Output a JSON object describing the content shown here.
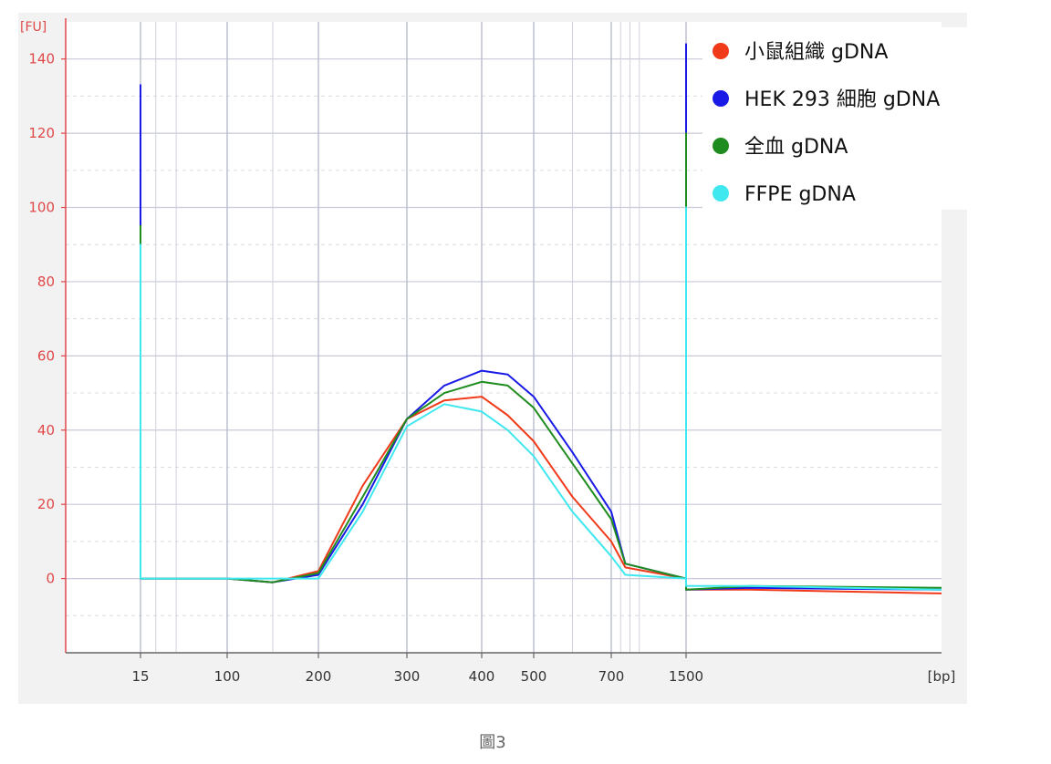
{
  "caption": "圖3",
  "chart_data": {
    "type": "line",
    "yunit": "[FU]",
    "xunit": "[bp]",
    "ylim": [
      -20,
      150
    ],
    "yticks": [
      0,
      20,
      40,
      60,
      80,
      100,
      120,
      140
    ],
    "xticks": [
      {
        "label": "15",
        "value": 15
      },
      {
        "label": "100",
        "value": 100
      },
      {
        "label": "200",
        "value": 200
      },
      {
        "label": "300",
        "value": 300
      },
      {
        "label": "400",
        "value": 400
      },
      {
        "label": "500",
        "value": 500
      },
      {
        "label": "700",
        "value": 700
      },
      {
        "label": "1500",
        "value": 1500
      }
    ],
    "grid": true,
    "legend_position": "top-right",
    "axis_color": "#e04848",
    "series": [
      {
        "name": "小鼠組織 gDNA",
        "color": "#f03a1a",
        "points": [
          [
            15,
            0
          ],
          [
            15,
            85
          ],
          [
            15,
            0
          ],
          [
            100,
            0
          ],
          [
            150,
            -1
          ],
          [
            200,
            2
          ],
          [
            250,
            25
          ],
          [
            300,
            43
          ],
          [
            350,
            48
          ],
          [
            400,
            49
          ],
          [
            450,
            44
          ],
          [
            500,
            37
          ],
          [
            600,
            22
          ],
          [
            700,
            10
          ],
          [
            850,
            3
          ],
          [
            1500,
            0
          ],
          [
            1500,
            60
          ],
          [
            1500,
            -3
          ],
          [
            2000,
            -3
          ],
          [
            3500,
            -4
          ]
        ]
      },
      {
        "name": "HEK 293 細胞 gDNA",
        "color": "#1a1ae6",
        "points": [
          [
            15,
            0
          ],
          [
            15,
            133
          ],
          [
            15,
            0
          ],
          [
            100,
            0
          ],
          [
            150,
            -1
          ],
          [
            200,
            1
          ],
          [
            250,
            20
          ],
          [
            300,
            43
          ],
          [
            350,
            52
          ],
          [
            400,
            56
          ],
          [
            450,
            55
          ],
          [
            500,
            49
          ],
          [
            600,
            34
          ],
          [
            700,
            18
          ],
          [
            850,
            4
          ],
          [
            1500,
            0
          ],
          [
            1500,
            144
          ],
          [
            1500,
            -3
          ],
          [
            2000,
            -2.5
          ],
          [
            3500,
            -3
          ]
        ]
      },
      {
        "name": "全血 gDNA",
        "color": "#1e8c1e",
        "points": [
          [
            15,
            0
          ],
          [
            15,
            95
          ],
          [
            15,
            0
          ],
          [
            100,
            0
          ],
          [
            150,
            -1
          ],
          [
            200,
            1.5
          ],
          [
            250,
            22
          ],
          [
            300,
            43
          ],
          [
            350,
            50
          ],
          [
            400,
            53
          ],
          [
            450,
            52
          ],
          [
            500,
            46
          ],
          [
            600,
            31
          ],
          [
            700,
            16
          ],
          [
            850,
            4
          ],
          [
            1500,
            0
          ],
          [
            1500,
            120
          ],
          [
            1500,
            -3
          ],
          [
            2000,
            -2
          ],
          [
            3500,
            -2.5
          ]
        ]
      },
      {
        "name": "FFPE gDNA",
        "color": "#3ee8ee",
        "points": [
          [
            15,
            0
          ],
          [
            15,
            90
          ],
          [
            15,
            0
          ],
          [
            100,
            0
          ],
          [
            150,
            0
          ],
          [
            200,
            0
          ],
          [
            250,
            18
          ],
          [
            300,
            41
          ],
          [
            350,
            47
          ],
          [
            400,
            45
          ],
          [
            450,
            40
          ],
          [
            500,
            33
          ],
          [
            600,
            18
          ],
          [
            700,
            6
          ],
          [
            850,
            1
          ],
          [
            1500,
            0
          ],
          [
            1500,
            100
          ],
          [
            1500,
            -2
          ],
          [
            2000,
            -2
          ],
          [
            3500,
            -3
          ]
        ]
      }
    ]
  }
}
